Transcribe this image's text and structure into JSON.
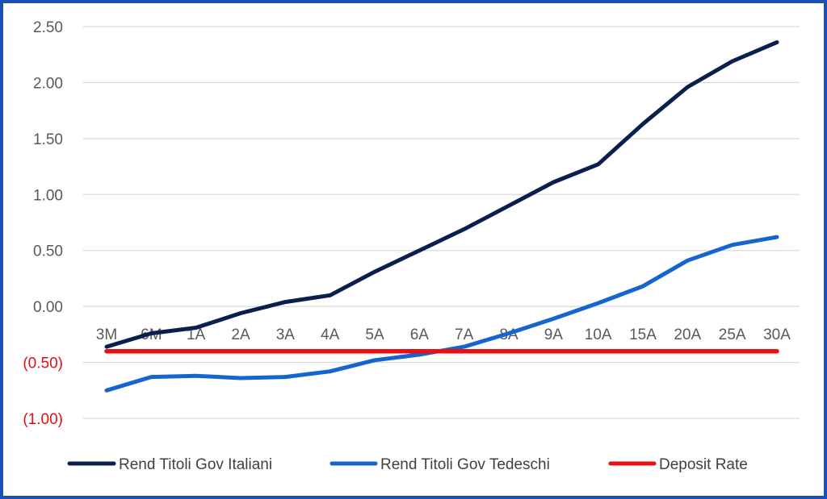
{
  "chart_data": {
    "type": "line",
    "categories": [
      "3M",
      "6M",
      "1A",
      "2A",
      "3A",
      "4A",
      "5A",
      "6A",
      "7A",
      "8A",
      "9A",
      "10A",
      "15A",
      "20A",
      "25A",
      "30A"
    ],
    "series": [
      {
        "name": "Rend Titoli Gov Italiani",
        "color": "#0b1f4f",
        "values": [
          -0.36,
          -0.24,
          -0.19,
          -0.06,
          0.04,
          0.1,
          0.31,
          0.5,
          0.69,
          0.9,
          1.11,
          1.27,
          1.63,
          1.96,
          2.19,
          2.36
        ]
      },
      {
        "name": "Rend Titoli Gov Tedeschi",
        "color": "#1565d0",
        "values": [
          -0.75,
          -0.63,
          -0.62,
          -0.64,
          -0.63,
          -0.58,
          -0.48,
          -0.43,
          -0.36,
          -0.24,
          -0.11,
          0.03,
          0.18,
          0.41,
          0.55,
          0.62
        ]
      },
      {
        "name": "Deposit Rate",
        "color": "#e81010",
        "values": [
          -0.4,
          -0.4,
          -0.4,
          -0.4,
          -0.4,
          -0.4,
          -0.4,
          -0.4,
          -0.4,
          -0.4,
          -0.4,
          -0.4,
          -0.4,
          -0.4,
          -0.4,
          -0.4
        ]
      }
    ],
    "yticks": [
      2.5,
      2.0,
      1.5,
      1.0,
      0.5,
      0.0,
      -0.5,
      -1.0
    ],
    "ytick_labels": [
      "2.50",
      "2.00",
      "1.50",
      "1.00",
      "0.50",
      "0.00",
      "(0.50)",
      "(1.00)"
    ],
    "negative_tick_color": "#e01010",
    "ylim": [
      -1.0,
      2.5
    ],
    "grid": true,
    "legend_position": "bottom",
    "title": "",
    "xlabel": "",
    "ylabel": ""
  }
}
